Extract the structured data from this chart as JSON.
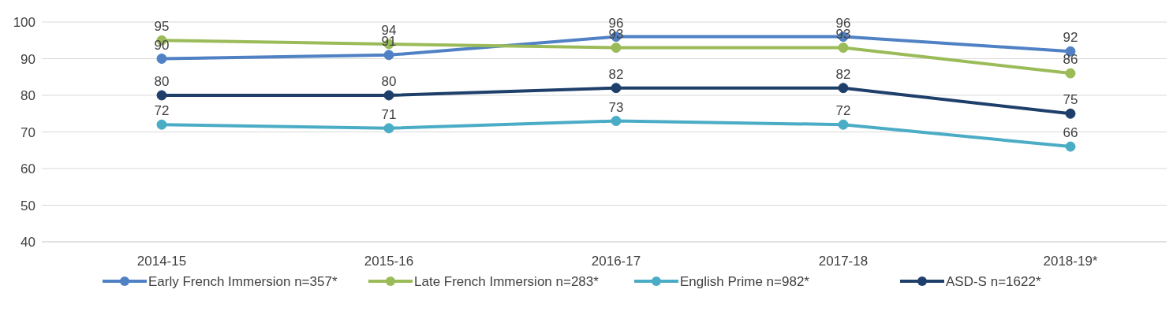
{
  "chart_data": {
    "type": "line",
    "categories": [
      "2014-15",
      "2015-16",
      "2016-17",
      "2017-18",
      "2018-19*"
    ],
    "series": [
      {
        "name": "Early French Immersion n=357*",
        "color": "#4f81c4",
        "values": [
          90,
          91,
          96,
          96,
          92
        ]
      },
      {
        "name": "Late French Immersion n=283*",
        "color": "#9bbb59",
        "values": [
          95,
          94,
          93,
          93,
          86
        ]
      },
      {
        "name": "English Prime n=982*",
        "color": "#4bacc6",
        "values": [
          72,
          71,
          73,
          72,
          66
        ]
      },
      {
        "name": "ASD-S n=1622*",
        "color": "#1f3f6b",
        "values": [
          80,
          80,
          82,
          82,
          75
        ]
      }
    ],
    "ylim": [
      40,
      100
    ],
    "yticks": [
      40,
      50,
      60,
      70,
      80,
      90,
      100
    ],
    "grid": "y",
    "legend": "bottom",
    "marker": "circle",
    "line_style": "solid",
    "data_labels": true
  }
}
